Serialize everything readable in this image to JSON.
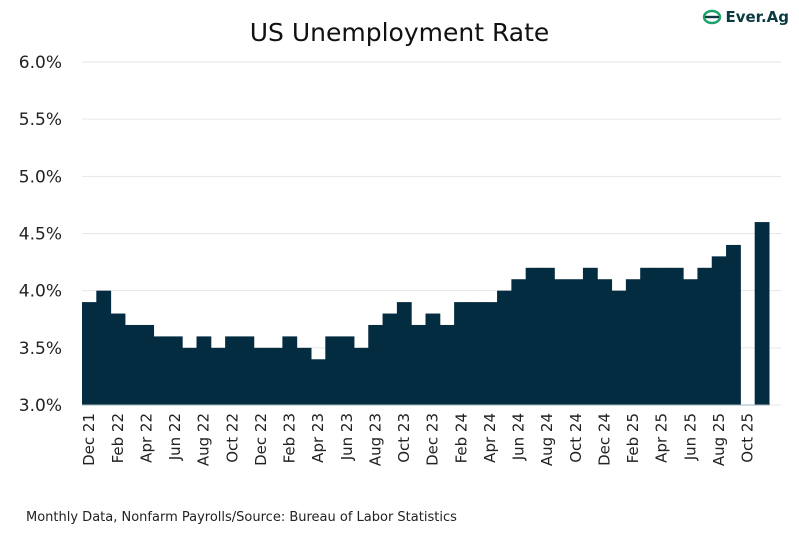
{
  "chart_data": {
    "type": "bar",
    "title": "US Unemployment Rate",
    "categories": [
      "Dec 21",
      "Jan 22",
      "Feb 22",
      "Mar 22",
      "Apr 22",
      "May 22",
      "Jun 22",
      "Jul 22",
      "Aug 22",
      "Sep 22",
      "Oct 22",
      "Nov 22",
      "Dec 22",
      "Jan 23",
      "Feb 23",
      "Mar 23",
      "Apr 23",
      "May 23",
      "Jun 23",
      "Jul 23",
      "Aug 23",
      "Sep 23",
      "Oct 23",
      "Nov 23",
      "Dec 23",
      "Jan 24",
      "Feb 24",
      "Mar 24",
      "Apr 24",
      "May 24",
      "Jun 24",
      "Jul 24",
      "Aug 24",
      "Sep 24",
      "Oct 24",
      "Nov 24",
      "Dec 24",
      "Jan 25",
      "Feb 25",
      "Mar 25",
      "Apr 25",
      "May 25",
      "Jun 25",
      "Jul 25",
      "Aug 25",
      "Sep 25",
      "Oct 25",
      "Nov 25"
    ],
    "values": [
      3.9,
      4.0,
      3.8,
      3.7,
      3.7,
      3.6,
      3.6,
      3.5,
      3.6,
      3.5,
      3.6,
      3.6,
      3.5,
      3.5,
      3.6,
      3.5,
      3.4,
      3.6,
      3.6,
      3.5,
      3.7,
      3.8,
      3.9,
      3.7,
      3.8,
      3.7,
      3.9,
      3.9,
      3.9,
      4.0,
      4.1,
      4.2,
      4.2,
      4.1,
      4.1,
      4.2,
      4.1,
      4.0,
      4.1,
      4.2,
      4.2,
      4.2,
      4.1,
      4.2,
      4.3,
      4.4,
      null,
      4.6
    ],
    "x_tick_labels": [
      "Dec 21",
      "Feb 22",
      "Apr 22",
      "Jun 22",
      "Aug 22",
      "Oct 22",
      "Dec 22",
      "Feb 23",
      "Apr 23",
      "Jun 23",
      "Aug 23",
      "Oct 23",
      "Dec 23",
      "Feb 24",
      "Apr 24",
      "Jun 24",
      "Aug 24",
      "Oct 24",
      "Dec 24",
      "Feb 25",
      "Apr 25",
      "Jun 25",
      "Aug 25",
      "Oct 25"
    ],
    "y_tick_labels": [
      "3.0%",
      "3.5%",
      "4.0%",
      "4.5%",
      "5.0%",
      "5.5%",
      "6.0%"
    ],
    "y_ticks": [
      3.0,
      3.5,
      4.0,
      4.5,
      5.0,
      5.5,
      6.0
    ],
    "ylim": [
      3.0,
      6.0
    ],
    "grid": true,
    "bar_color": "#042c40",
    "note": "Monthly Data, Nonfarm Payrolls/Source: Bureau of Labor Statistics"
  },
  "logo": {
    "text": "Ever.Ag"
  }
}
